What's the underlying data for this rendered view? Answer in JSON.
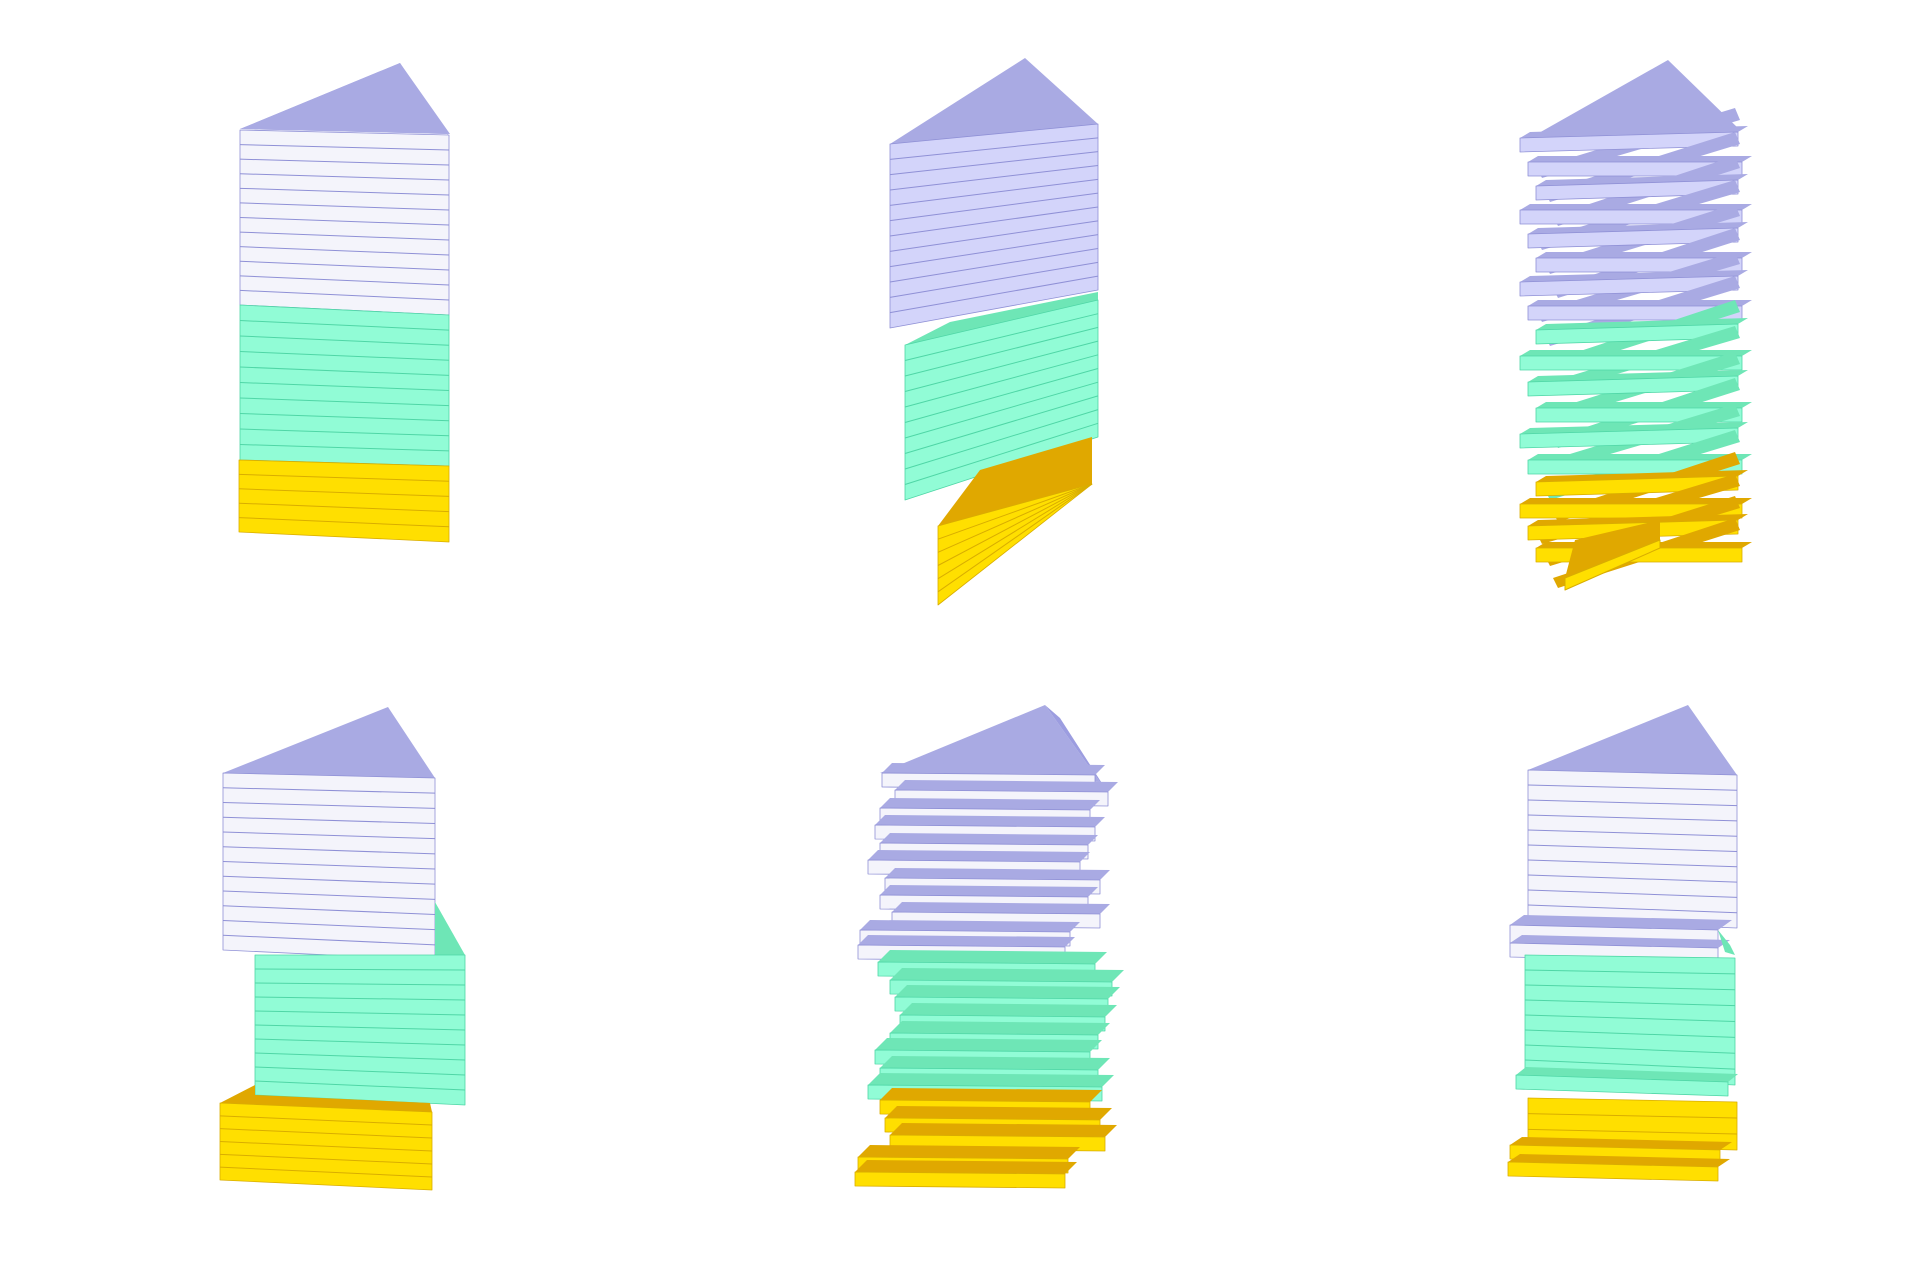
{
  "diagram": {
    "description_visible_text": "",
    "panel_count": 6,
    "colors": {
      "background": "#ffffff",
      "roof": "#a9aae3",
      "roof_dark": "#9c9de0",
      "upper_face": "#f4f4fb",
      "upper_face_alt": "#d3d4fa",
      "upper_side": "#a9aae3",
      "middle_face": "#91fcd6",
      "middle_side": "#6ee6b6",
      "lower_face": "#ffdf00",
      "lower_side": "#e0a800",
      "floor_line": "#8f90d6",
      "floor_line_mid": "#4fd6a6",
      "floor_line_low": "#d9ad00"
    },
    "panels": [
      {
        "id": "stack-aligned",
        "position": "top-left",
        "variant": "aligned"
      },
      {
        "id": "stack-rotated",
        "position": "top-center",
        "variant": "rotated"
      },
      {
        "id": "stack-twisted",
        "position": "top-right",
        "variant": "twisted"
      },
      {
        "id": "stack-offset-blocks",
        "position": "bottom-left",
        "variant": "offset-blocks"
      },
      {
        "id": "stack-jittered",
        "position": "bottom-center",
        "variant": "jittered"
      },
      {
        "id": "stack-partial",
        "position": "bottom-right",
        "variant": "partial"
      }
    ]
  }
}
